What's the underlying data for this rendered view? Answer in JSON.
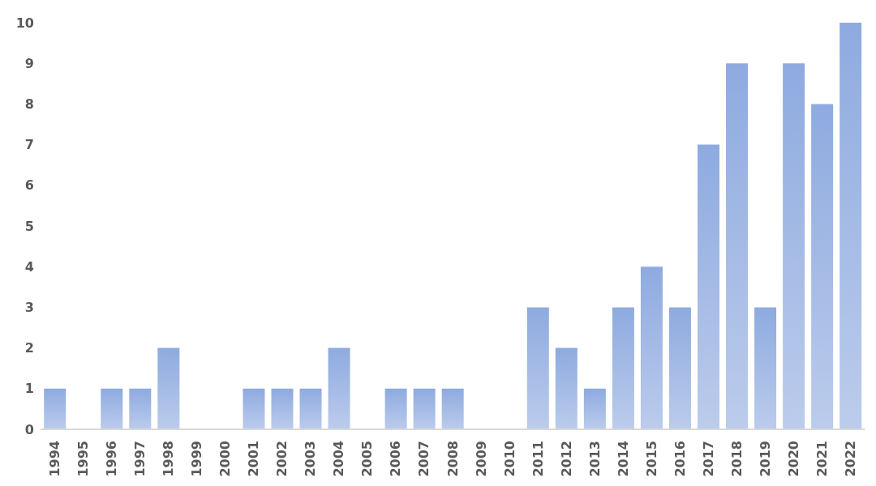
{
  "chart_data": {
    "type": "bar",
    "categories": [
      "1994",
      "1995",
      "1996",
      "1997",
      "1998",
      "1999",
      "2000",
      "2001",
      "2002",
      "2003",
      "2004",
      "2005",
      "2006",
      "2007",
      "2008",
      "2009",
      "2010",
      "2011",
      "2012",
      "2013",
      "2014",
      "2015",
      "2016",
      "2017",
      "2018",
      "2019",
      "2020",
      "2021",
      "2022"
    ],
    "values": [
      1,
      0,
      1,
      1,
      2,
      0,
      0,
      1,
      1,
      1,
      2,
      0,
      1,
      1,
      1,
      0,
      0,
      3,
      2,
      1,
      3,
      4,
      3,
      7,
      9,
      3,
      9,
      8,
      10
    ],
    "color": "#8eaadf",
    "ylim": [
      0,
      10
    ],
    "yticks": [
      0,
      1,
      2,
      3,
      4,
      5,
      6,
      7,
      8,
      9,
      10
    ],
    "grid": false
  }
}
